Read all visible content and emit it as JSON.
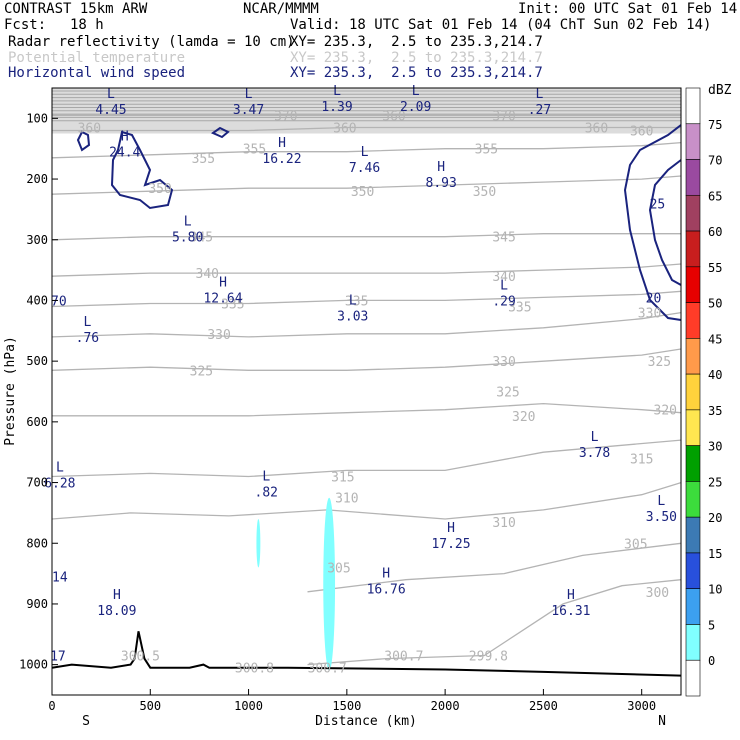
{
  "header": {
    "title": "CONTRAST 15km ARW",
    "center": "NCAR/MMMM",
    "init": "Init: 00 UTC Sat 01 Feb 14",
    "fcst_label": "Fcst:",
    "fcst_value": "18 h",
    "valid": "Valid: 18 UTC Sat 01 Feb 14 (04 ChT Sun 02 Feb 14)",
    "fields": [
      {
        "name": "Radar reflectivity (lamda = 10 cm)",
        "xy": "XY= 235.3,  2.5 to 235.3,214.7"
      },
      {
        "name": "Potential temperature",
        "xy": "XY= 235.3,  2.5 to 235.3,214.7"
      },
      {
        "name": "Horizontal wind speed",
        "xy": "XY= 235.3,  2.5 to 235.3,214.7"
      }
    ]
  },
  "colors": {
    "wind_contour": "#1a237e",
    "theta_contour": "#b4b4b4",
    "terrain": "#000000",
    "reflectivity_cell": "#80ffff"
  },
  "chart_data": {
    "type": "cross-section",
    "xlabel": "Distance (km)",
    "ylabel": "Pressure (hPa)",
    "xlim": [
      0,
      3200
    ],
    "ylim": [
      1050,
      50
    ],
    "x_ticks": [
      0,
      500,
      1000,
      1500,
      2000,
      2500,
      3000
    ],
    "y_ticks": [
      100,
      200,
      300,
      400,
      500,
      600,
      700,
      800,
      900,
      1000
    ],
    "start_label": "S",
    "end_label": "N",
    "colorbar": {
      "unit": "dBZ",
      "levels": [
        "75",
        "70",
        "65",
        "60",
        "55",
        "50",
        "45",
        "40",
        "35",
        "30",
        "25",
        "20",
        "15",
        "10",
        "5",
        "0"
      ],
      "colors": [
        "#ffffff",
        "#c890c8",
        "#9a4aa0",
        "#a04060",
        "#c81e1e",
        "#e60000",
        "#ff3c28",
        "#ff9a4a",
        "#ffd23c",
        "#ffe650",
        "#00a000",
        "#3cdc3c",
        "#3c7ab4",
        "#2850dc",
        "#3ca0f0",
        "#80ffff",
        "#ffffff"
      ]
    },
    "theta_contours": [
      {
        "value": 300,
        "label": "300",
        "pts": [
          [
            1300,
            1000
          ],
          [
            1700,
            990
          ],
          [
            2200,
            985
          ],
          [
            2600,
            900
          ],
          [
            2900,
            870
          ],
          [
            3200,
            860
          ]
        ]
      },
      {
        "value": 305,
        "label": "305",
        "pts": [
          [
            1300,
            880
          ],
          [
            1800,
            860
          ],
          [
            2300,
            850
          ],
          [
            2700,
            820
          ],
          [
            3200,
            800
          ]
        ]
      },
      {
        "value": 310,
        "label": "310",
        "pts": [
          [
            0,
            760
          ],
          [
            400,
            750
          ],
          [
            900,
            755
          ],
          [
            1400,
            745
          ],
          [
            2000,
            760
          ],
          [
            2500,
            745
          ],
          [
            3000,
            720
          ],
          [
            3200,
            700
          ]
        ]
      },
      {
        "value": 315,
        "label": "315",
        "pts": [
          [
            0,
            690
          ],
          [
            500,
            685
          ],
          [
            1000,
            690
          ],
          [
            1500,
            680
          ],
          [
            2000,
            680
          ],
          [
            2500,
            650
          ],
          [
            3200,
            630
          ]
        ]
      },
      {
        "value": 320,
        "label": "320",
        "pts": [
          [
            0,
            590
          ],
          [
            500,
            590
          ],
          [
            1000,
            590
          ],
          [
            1500,
            585
          ],
          [
            2000,
            580
          ],
          [
            2500,
            570
          ],
          [
            3000,
            580
          ],
          [
            3200,
            585
          ]
        ]
      },
      {
        "value": 325,
        "label": "325",
        "pts": [
          [
            0,
            515
          ],
          [
            500,
            510
          ],
          [
            1000,
            515
          ],
          [
            1500,
            515
          ],
          [
            2000,
            510
          ],
          [
            2500,
            500
          ],
          [
            3000,
            490
          ],
          [
            3200,
            480
          ]
        ]
      },
      {
        "value": 330,
        "label": "330",
        "pts": [
          [
            0,
            460
          ],
          [
            500,
            455
          ],
          [
            1000,
            460
          ],
          [
            1500,
            455
          ],
          [
            2000,
            455
          ],
          [
            2500,
            445
          ],
          [
            3000,
            430
          ],
          [
            3200,
            420
          ]
        ]
      },
      {
        "value": 335,
        "label": "335",
        "pts": [
          [
            0,
            410
          ],
          [
            500,
            405
          ],
          [
            1000,
            405
          ],
          [
            1500,
            400
          ],
          [
            2000,
            400
          ],
          [
            2500,
            395
          ],
          [
            3000,
            390
          ],
          [
            3200,
            385
          ]
        ]
      },
      {
        "value": 340,
        "label": "340",
        "pts": [
          [
            0,
            360
          ],
          [
            500,
            355
          ],
          [
            1000,
            355
          ],
          [
            1500,
            355
          ],
          [
            2000,
            355
          ],
          [
            2500,
            350
          ],
          [
            3000,
            345
          ],
          [
            3200,
            340
          ]
        ]
      },
      {
        "value": 345,
        "label": "345",
        "pts": [
          [
            0,
            300
          ],
          [
            500,
            295
          ],
          [
            1000,
            295
          ],
          [
            1500,
            295
          ],
          [
            2000,
            295
          ],
          [
            2500,
            290
          ],
          [
            3000,
            290
          ],
          [
            3200,
            290
          ]
        ]
      },
      {
        "value": 350,
        "label": "350",
        "pts": [
          [
            0,
            225
          ],
          [
            500,
            220
          ],
          [
            1000,
            215
          ],
          [
            1500,
            215
          ],
          [
            2000,
            210
          ],
          [
            2500,
            205
          ],
          [
            3000,
            200
          ],
          [
            3200,
            195
          ]
        ]
      },
      {
        "value": 355,
        "label": "355",
        "pts": [
          [
            0,
            165
          ],
          [
            500,
            160
          ],
          [
            1000,
            155
          ],
          [
            1500,
            155
          ],
          [
            2000,
            150
          ],
          [
            2500,
            150
          ],
          [
            3000,
            145
          ],
          [
            3200,
            140
          ]
        ]
      },
      {
        "value": 360,
        "label": "360",
        "pts": [
          [
            0,
            120
          ],
          [
            500,
            120
          ],
          [
            1000,
            120
          ],
          [
            1500,
            115
          ],
          [
            2000,
            115
          ],
          [
            2500,
            115
          ],
          [
            3000,
            115
          ],
          [
            3200,
            115
          ]
        ]
      },
      {
        "value": 370,
        "label": "370",
        "pts": [
          [
            0,
            95
          ],
          [
            500,
            95
          ],
          [
            1000,
            95
          ],
          [
            1500,
            95
          ],
          [
            2000,
            95
          ],
          [
            2500,
            95
          ],
          [
            3000,
            95
          ],
          [
            3200,
            95
          ]
        ]
      }
    ],
    "theta_labels": [
      {
        "text": "360",
        "x": 190,
        "y": 115
      },
      {
        "text": "370",
        "x": 1190,
        "y": 95
      },
      {
        "text": "360",
        "x": 1490,
        "y": 115
      },
      {
        "text": "360",
        "x": 1740,
        "y": 95
      },
      {
        "text": "370",
        "x": 2300,
        "y": 95
      },
      {
        "text": "360",
        "x": 2770,
        "y": 115
      },
      {
        "text": "360",
        "x": 3000,
        "y": 120
      },
      {
        "text": "355",
        "x": 770,
        "y": 165
      },
      {
        "text": "355",
        "x": 1030,
        "y": 150
      },
      {
        "text": "355",
        "x": 2210,
        "y": 150
      },
      {
        "text": "350",
        "x": 550,
        "y": 215
      },
      {
        "text": "350",
        "x": 1580,
        "y": 220
      },
      {
        "text": "350",
        "x": 2200,
        "y": 220
      },
      {
        "text": "345",
        "x": 760,
        "y": 295
      },
      {
        "text": "345",
        "x": 2300,
        "y": 295
      },
      {
        "text": "340",
        "x": 790,
        "y": 355
      },
      {
        "text": "340",
        "x": 2300,
        "y": 360
      },
      {
        "text": "335",
        "x": 1550,
        "y": 400
      },
      {
        "text": "335",
        "x": 2380,
        "y": 410
      },
      {
        "text": "335",
        "x": 920,
        "y": 405
      },
      {
        "text": "330",
        "x": 3040,
        "y": 420
      },
      {
        "text": "330",
        "x": 850,
        "y": 455
      },
      {
        "text": "330",
        "x": 2300,
        "y": 500
      },
      {
        "text": "325",
        "x": 760,
        "y": 515
      },
      {
        "text": "325",
        "x": 2320,
        "y": 550
      },
      {
        "text": "325",
        "x": 3090,
        "y": 500
      },
      {
        "text": "320",
        "x": 2400,
        "y": 590
      },
      {
        "text": "320",
        "x": 3120,
        "y": 580
      },
      {
        "text": "315",
        "x": 1480,
        "y": 690
      },
      {
        "text": "315",
        "x": 3000,
        "y": 660
      },
      {
        "text": "310",
        "x": 1500,
        "y": 725
      },
      {
        "text": "310",
        "x": 2300,
        "y": 765
      },
      {
        "text": "305",
        "x": 1460,
        "y": 840
      },
      {
        "text": "305",
        "x": 2970,
        "y": 800
      },
      {
        "text": "300",
        "x": 3080,
        "y": 880
      },
      {
        "text": "300.5",
        "x": 450,
        "y": 985
      },
      {
        "text": "300.8",
        "x": 1030,
        "y": 1005
      },
      {
        "text": "300.7",
        "x": 1400,
        "y": 1005
      },
      {
        "text": "300.7",
        "x": 1790,
        "y": 985
      },
      {
        "text": "299.8",
        "x": 2220,
        "y": 985
      }
    ],
    "extrema_labels": [
      {
        "symbol": "L",
        "value": "4.45",
        "x": 300,
        "y": 80
      },
      {
        "symbol": "L",
        "value": "3.47",
        "x": 1000,
        "y": 80
      },
      {
        "symbol": "L",
        "value": "1.39",
        "x": 1450,
        "y": 75
      },
      {
        "symbol": "L",
        "value": "2.09",
        "x": 1850,
        "y": 75
      },
      {
        "symbol": "L",
        "value": ".27",
        "x": 2480,
        "y": 80
      },
      {
        "symbol": "H",
        "value": "24.4",
        "x": 370,
        "y": 150
      },
      {
        "symbol": "H",
        "value": "16.22",
        "x": 1170,
        "y": 160
      },
      {
        "symbol": "L",
        "value": "7.46",
        "x": 1590,
        "y": 175
      },
      {
        "symbol": "H",
        "value": "8.93",
        "x": 1980,
        "y": 200
      },
      {
        "symbol": "L",
        "value": "5.80",
        "x": 690,
        "y": 290
      },
      {
        "symbol": "H",
        "value": "12.64",
        "x": 870,
        "y": 390
      },
      {
        "symbol": "L",
        "value": "3.03",
        "x": 1530,
        "y": 420
      },
      {
        "symbol": "L",
        "value": ".29",
        "x": 2300,
        "y": 395
      },
      {
        "symbol": "L",
        "value": ".76",
        "x": 180,
        "y": 455
      },
      {
        "symbol": "L",
        "value": "3.78",
        "x": 2760,
        "y": 645
      },
      {
        "symbol": "L",
        "value": "6.28",
        "x": 40,
        "y": 695
      },
      {
        "symbol": "L",
        "value": ".82",
        "x": 1090,
        "y": 710
      },
      {
        "symbol": "L",
        "value": "3.50",
        "x": 3100,
        "y": 750
      },
      {
        "symbol": "H",
        "value": "17.25",
        "x": 2030,
        "y": 795
      },
      {
        "symbol": "H",
        "value": "16.76",
        "x": 1700,
        "y": 870
      },
      {
        "symbol": "H",
        "value": "18.09",
        "x": 330,
        "y": 905
      },
      {
        "symbol": "H",
        "value": "16.31",
        "x": 2640,
        "y": 905
      }
    ],
    "wind_contour_labels": [
      {
        "text": "25",
        "x": 3080,
        "y": 240
      },
      {
        "text": "20",
        "x": 3060,
        "y": 395
      }
    ],
    "edge_labels": [
      {
        "text": "70",
        "x": 35,
        "y": 400
      },
      {
        "text": "14",
        "x": 40,
        "y": 855
      },
      {
        "text": "17",
        "x": 30,
        "y": 985
      }
    ],
    "reflectivity_cells": [
      {
        "x_center": 1410,
        "half_width": 30,
        "p_top": 725,
        "p_bottom": 1010
      },
      {
        "x_center": 1050,
        "half_width": 10,
        "p_top": 760,
        "p_bottom": 840
      }
    ],
    "terrain": [
      [
        0,
        1005
      ],
      [
        100,
        1000
      ],
      [
        300,
        1005
      ],
      [
        400,
        1000
      ],
      [
        420,
        990
      ],
      [
        440,
        945
      ],
      [
        470,
        990
      ],
      [
        500,
        1005
      ],
      [
        700,
        1005
      ],
      [
        770,
        1000
      ],
      [
        800,
        1005
      ],
      [
        1200,
        1005
      ],
      [
        2000,
        1008
      ],
      [
        2500,
        1012
      ],
      [
        3200,
        1018
      ]
    ]
  }
}
